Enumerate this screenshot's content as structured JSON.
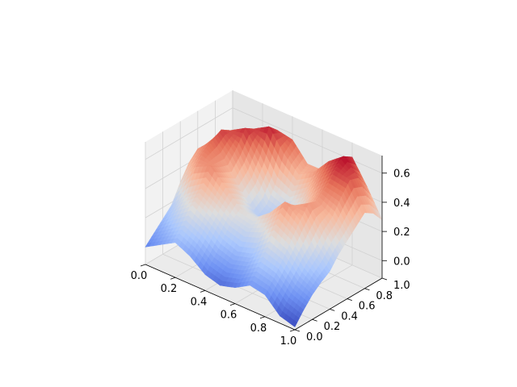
{
  "chart_data": {
    "type": "surface",
    "title": "",
    "xlabel": "",
    "ylabel": "",
    "zlabel": "",
    "colormap": "coolwarm",
    "colormap_stops": [
      "#3b4cc0",
      "#6f92f3",
      "#aac7fd",
      "#dddddd",
      "#f7b89c",
      "#e7745b",
      "#b40426"
    ],
    "pane_colors": [
      "#f2f2f2",
      "#e6e6e6",
      "#ebebeb"
    ],
    "xlim": [
      0,
      1
    ],
    "ylim": [
      0,
      1
    ],
    "zlim": [
      -0.12,
      0.72
    ],
    "x_ticks": [
      "0.0",
      "0.2",
      "0.4",
      "0.6",
      "0.8",
      "1.0"
    ],
    "y_ticks": [
      "0.0",
      "0.2",
      "0.4",
      "0.6",
      "0.8",
      "1.0"
    ],
    "z_ticks": [
      "0.0",
      "0.2",
      "0.4",
      "0.6"
    ],
    "grid": true,
    "surface": {
      "x": [
        0,
        0.1,
        0.2,
        0.3,
        0.4,
        0.5,
        0.6,
        0.7,
        0.8,
        0.9,
        1.0
      ],
      "y": [
        0,
        0.1,
        0.2,
        0.3,
        0.4,
        0.5,
        0.6,
        0.7,
        0.8,
        0.9,
        1.0
      ],
      "z": [
        [
          0.0,
          0.06,
          0.12,
          0.07,
          -0.01,
          -0.04,
          -0.01,
          0.05,
          0.03,
          -0.07,
          -0.1
        ],
        [
          0.06,
          0.13,
          0.2,
          0.15,
          0.07,
          0.04,
          0.07,
          0.14,
          0.11,
          0.02,
          -0.02
        ],
        [
          0.12,
          0.22,
          0.3,
          0.24,
          0.16,
          0.12,
          0.15,
          0.24,
          0.2,
          0.1,
          0.05
        ],
        [
          0.18,
          0.3,
          0.38,
          0.32,
          0.25,
          0.22,
          0.26,
          0.36,
          0.3,
          0.18,
          0.1
        ],
        [
          0.3,
          0.45,
          0.5,
          0.4,
          0.3,
          0.28,
          0.36,
          0.48,
          0.4,
          0.25,
          0.14
        ],
        [
          0.4,
          0.52,
          0.46,
          0.36,
          0.25,
          0.23,
          0.3,
          0.42,
          0.48,
          0.34,
          0.22
        ],
        [
          0.46,
          0.56,
          0.44,
          0.3,
          0.18,
          0.16,
          0.24,
          0.36,
          0.46,
          0.4,
          0.28
        ],
        [
          0.44,
          0.6,
          0.52,
          0.36,
          0.22,
          0.18,
          0.26,
          0.4,
          0.52,
          0.5,
          0.34
        ],
        [
          0.36,
          0.56,
          0.62,
          0.48,
          0.32,
          0.28,
          0.36,
          0.5,
          0.6,
          0.58,
          0.4
        ],
        [
          0.24,
          0.42,
          0.58,
          0.64,
          0.5,
          0.4,
          0.46,
          0.58,
          0.66,
          0.56,
          0.36
        ],
        [
          0.12,
          0.26,
          0.44,
          0.58,
          0.56,
          0.44,
          0.44,
          0.56,
          0.62,
          0.46,
          0.28
        ]
      ]
    }
  }
}
